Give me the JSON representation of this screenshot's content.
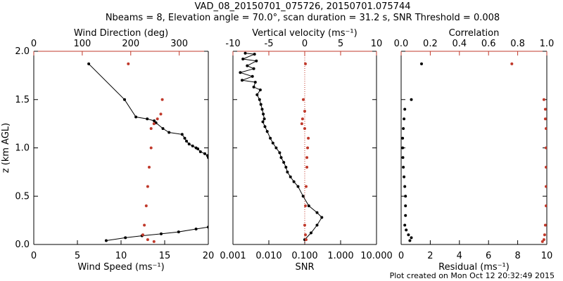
{
  "header": {
    "line1": "VAD_08_20150701_075726, 20150701.075744",
    "line2": "Nbeams = 8, Elevation angle = 70.0°, scan duration = 31.2 s, SNR Threshold = 0.008"
  },
  "footer": {
    "created": "Plot created on Mon Oct 12 20:32:49 2015"
  },
  "colors": {
    "black_series": "#000000",
    "red_series": "#c0392b",
    "axis": "#000000"
  },
  "chart_data": [
    {
      "type": "line",
      "ylabel": "z (km AGL)",
      "ylim": [
        0,
        2
      ],
      "yticks": [
        "0.0",
        "0.5",
        "1.0",
        "1.5",
        "2.0"
      ],
      "bottom_axis": {
        "label": "Wind Speed (ms⁻¹)",
        "lim": [
          0,
          20
        ],
        "ticks": [
          "0",
          "5",
          "10",
          "15",
          "20"
        ]
      },
      "top_axis": {
        "label": "Wind Direction (deg)",
        "lim": [
          0,
          360
        ],
        "ticks": [
          "0",
          "100",
          "200",
          "300"
        ]
      },
      "series": [
        {
          "name": "Wind Speed",
          "axis": "bottom",
          "color": "black",
          "points": [
            [
              6.3,
              1.87
            ],
            [
              10.4,
              1.5
            ],
            [
              11.7,
              1.32
            ],
            [
              13.0,
              1.3
            ],
            [
              13.8,
              1.28
            ],
            [
              14.0,
              1.26
            ],
            [
              14.8,
              1.2
            ],
            [
              15.5,
              1.16
            ],
            [
              17.0,
              1.14
            ],
            [
              17.3,
              1.1
            ],
            [
              17.5,
              1.07
            ],
            [
              17.8,
              1.04
            ],
            [
              18.2,
              1.02
            ],
            [
              18.6,
              1.0
            ],
            [
              18.8,
              0.99
            ],
            [
              19.1,
              0.96
            ],
            [
              19.6,
              0.94
            ],
            [
              19.9,
              0.92
            ],
            [
              20.0,
              0.9
            ]
          ],
          "points_low": [
            [
              8.3,
              0.04
            ],
            [
              10.5,
              0.07
            ],
            [
              12.4,
              0.09
            ],
            [
              14.6,
              0.11
            ],
            [
              16.6,
              0.13
            ],
            [
              18.6,
              0.16
            ],
            [
              20.0,
              0.18
            ]
          ]
        },
        {
          "name": "Wind Direction",
          "axis": "top",
          "color": "red",
          "points": [
            [
              195,
              1.87
            ],
            [
              265,
              1.5
            ],
            [
              262,
              1.35
            ],
            [
              255,
              1.3
            ],
            [
              248,
              1.25
            ],
            [
              242,
              1.2
            ],
            [
              242,
              1.0
            ],
            [
              238,
              0.8
            ],
            [
              235,
              0.6
            ],
            [
              232,
              0.4
            ],
            [
              228,
              0.2
            ],
            [
              225,
              0.1
            ],
            [
              235,
              0.05
            ],
            [
              248,
              0.03
            ]
          ]
        }
      ]
    },
    {
      "type": "line",
      "ylim": [
        0,
        2
      ],
      "bottom_axis": {
        "label": "SNR",
        "scale": "log",
        "lim": [
          0.001,
          10
        ],
        "ticks": [
          "0.001",
          "0.010",
          "0.100",
          "1.000",
          "10.000"
        ]
      },
      "top_axis": {
        "label": "Vertical velocity (ms⁻¹)",
        "lim": [
          -10,
          10
        ],
        "ticks": [
          "-10",
          "-5",
          "0",
          "5",
          "10"
        ],
        "zero_line": "dotted"
      },
      "series": [
        {
          "name": "SNR",
          "axis": "bottom",
          "color": "black",
          "points": [
            [
              0.0022,
              1.98
            ],
            [
              0.004,
              1.97
            ],
            [
              0.0019,
              1.92
            ],
            [
              0.0045,
              1.9
            ],
            [
              0.0025,
              1.85
            ],
            [
              0.0038,
              1.82
            ],
            [
              0.0016,
              1.78
            ],
            [
              0.0035,
              1.74
            ],
            [
              0.0018,
              1.7
            ],
            [
              0.0042,
              1.68
            ],
            [
              0.0038,
              1.63
            ],
            [
              0.0058,
              1.6
            ],
            [
              0.0047,
              1.55
            ],
            [
              0.0055,
              1.5
            ],
            [
              0.006,
              1.45
            ],
            [
              0.0065,
              1.4
            ],
            [
              0.007,
              1.35
            ],
            [
              0.0075,
              1.3
            ],
            [
              0.0068,
              1.27
            ],
            [
              0.0078,
              1.22
            ],
            [
              0.009,
              1.17
            ],
            [
              0.011,
              1.1
            ],
            [
              0.013,
              1.05
            ],
            [
              0.016,
              1.0
            ],
            [
              0.02,
              0.95
            ],
            [
              0.022,
              0.9
            ],
            [
              0.026,
              0.85
            ],
            [
              0.03,
              0.8
            ],
            [
              0.033,
              0.75
            ],
            [
              0.04,
              0.7
            ],
            [
              0.05,
              0.65
            ],
            [
              0.065,
              0.6
            ],
            [
              0.09,
              0.5
            ],
            [
              0.13,
              0.4
            ],
            [
              0.22,
              0.33
            ],
            [
              0.3,
              0.28
            ],
            [
              0.22,
              0.2
            ],
            [
              0.15,
              0.12
            ],
            [
              0.1,
              0.05
            ]
          ]
        },
        {
          "name": "Vertical velocity",
          "axis": "top",
          "color": "red",
          "points": [
            [
              0.1,
              1.87
            ],
            [
              -0.2,
              1.5
            ],
            [
              0.0,
              1.38
            ],
            [
              -0.3,
              1.3
            ],
            [
              -0.4,
              1.25
            ],
            [
              0.0,
              1.2
            ],
            [
              0.5,
              1.1
            ],
            [
              0.4,
              1.0
            ],
            [
              0.3,
              0.9
            ],
            [
              0.3,
              0.8
            ],
            [
              0.2,
              0.6
            ],
            [
              0.1,
              0.4
            ],
            [
              0.0,
              0.2
            ],
            [
              0.1,
              0.1
            ],
            [
              0.2,
              0.05
            ]
          ]
        }
      ]
    },
    {
      "type": "scatter",
      "ylim": [
        0,
        2
      ],
      "bottom_axis": {
        "label": "Residual (ms⁻¹)",
        "lim": [
          0,
          10
        ],
        "ticks": [
          "0",
          "2",
          "4",
          "6",
          "8",
          "10"
        ]
      },
      "top_axis": {
        "label": "Correlation",
        "lim": [
          0,
          1
        ],
        "ticks": [
          "0.0",
          "0.2",
          "0.4",
          "0.6",
          "0.8",
          "1.0"
        ]
      },
      "series": [
        {
          "name": "Residual",
          "axis": "bottom",
          "color": "black",
          "points": [
            [
              1.4,
              1.87
            ],
            [
              0.7,
              1.5
            ],
            [
              0.25,
              1.4
            ],
            [
              0.2,
              1.3
            ],
            [
              0.15,
              1.2
            ],
            [
              0.1,
              1.1
            ],
            [
              0.1,
              1.0
            ],
            [
              0.12,
              0.9
            ],
            [
              0.15,
              0.8
            ],
            [
              0.2,
              0.7
            ],
            [
              0.25,
              0.6
            ],
            [
              0.3,
              0.5
            ],
            [
              0.3,
              0.4
            ],
            [
              0.3,
              0.3
            ],
            [
              0.25,
              0.2
            ],
            [
              0.35,
              0.15
            ],
            [
              0.5,
              0.1
            ],
            [
              0.7,
              0.07
            ],
            [
              0.6,
              0.04
            ]
          ]
        },
        {
          "name": "Correlation",
          "axis": "top",
          "color": "red",
          "points": [
            [
              0.76,
              1.87
            ],
            [
              0.98,
              1.5
            ],
            [
              0.99,
              1.4
            ],
            [
              0.99,
              1.3
            ],
            [
              0.995,
              1.2
            ],
            [
              0.995,
              1.0
            ],
            [
              0.995,
              0.8
            ],
            [
              0.995,
              0.6
            ],
            [
              0.995,
              0.4
            ],
            [
              0.99,
              0.2
            ],
            [
              0.985,
              0.1
            ],
            [
              0.98,
              0.05
            ],
            [
              0.97,
              0.03
            ]
          ]
        }
      ]
    }
  ]
}
